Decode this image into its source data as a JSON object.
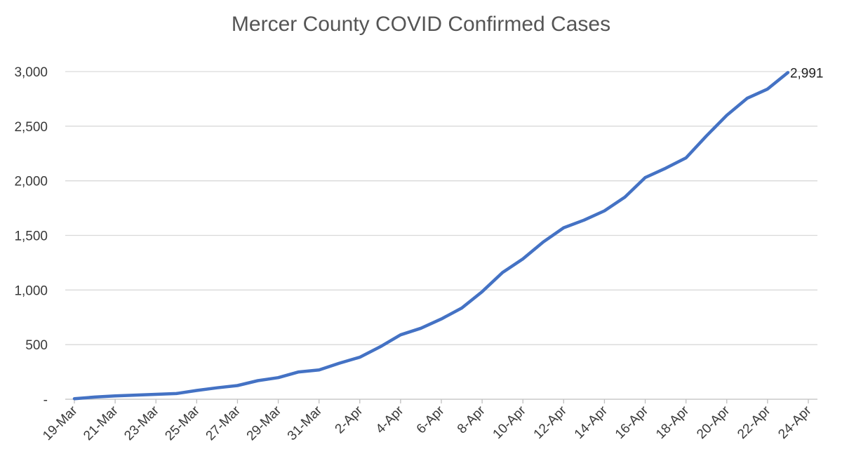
{
  "chart_data": {
    "type": "line",
    "title": "Mercer County COVID Confirmed Cases",
    "xlabel": "",
    "ylabel": "",
    "ylim": [
      0,
      3000
    ],
    "yticks": [
      0,
      500,
      1000,
      1500,
      2000,
      2500,
      3000
    ],
    "ytick_labels": [
      "-",
      "500",
      "1,000",
      "1,500",
      "2,000",
      "2,500",
      "3,000"
    ],
    "xticks": [
      "19-Mar",
      "21-Mar",
      "23-Mar",
      "25-Mar",
      "27-Mar",
      "29-Mar",
      "31-Mar",
      "2-Apr",
      "4-Apr",
      "6-Apr",
      "8-Apr",
      "10-Apr",
      "12-Apr",
      "14-Apr",
      "16-Apr",
      "18-Apr",
      "20-Apr",
      "22-Apr",
      "24-Apr"
    ],
    "grid": "horizontal",
    "legend": "none",
    "series": [
      {
        "color": "#4472c4",
        "x": [
          "19-Mar",
          "20-Mar",
          "21-Mar",
          "22-Mar",
          "23-Mar",
          "24-Mar",
          "25-Mar",
          "26-Mar",
          "27-Mar",
          "28-Mar",
          "29-Mar",
          "30-Mar",
          "31-Mar",
          "1-Apr",
          "2-Apr",
          "3-Apr",
          "4-Apr",
          "5-Apr",
          "6-Apr",
          "7-Apr",
          "8-Apr",
          "9-Apr",
          "10-Apr",
          "11-Apr",
          "12-Apr",
          "13-Apr",
          "14-Apr",
          "15-Apr",
          "16-Apr",
          "17-Apr",
          "18-Apr",
          "19-Apr",
          "20-Apr",
          "21-Apr",
          "22-Apr",
          "23-Apr"
        ],
        "values": [
          5,
          20,
          30,
          38,
          45,
          52,
          80,
          105,
          125,
          170,
          198,
          250,
          268,
          330,
          385,
          480,
          590,
          650,
          735,
          835,
          985,
          1160,
          1285,
          1440,
          1570,
          1640,
          1725,
          1850,
          2030,
          2115,
          2210,
          2410,
          2600,
          2755,
          2840,
          2991
        ]
      }
    ],
    "annotations": [
      {
        "series": 0,
        "point": "last",
        "text": "2,991"
      }
    ]
  }
}
